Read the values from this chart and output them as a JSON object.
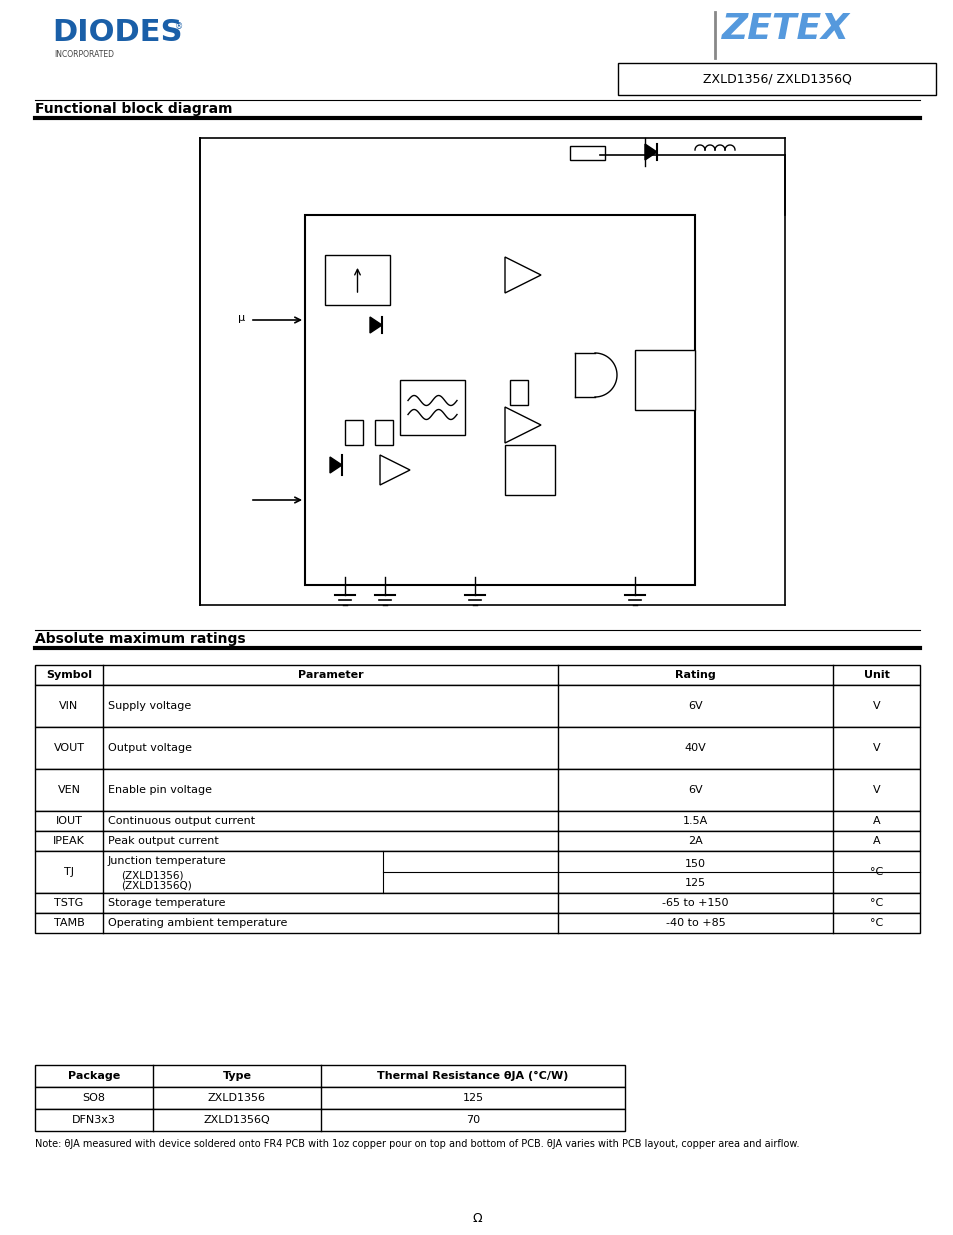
{
  "title": "ZXLD1356/ ZXLD1356Q",
  "title_box_text": "ZXLD1356/ ZXLD1356Q",
  "diodes_logo_text": "DIODES",
  "diodes_sub_text": "INCORPORATED",
  "zetex_logo_text": "ZETEX",
  "section1_title": "Functional block diagram",
  "section2_title": "Absolute maximum ratings",
  "bg_color": "#ffffff",
  "line_color": "#000000",
  "table1_headers": [
    "Symbol",
    "Parameter",
    "Rating",
    "Unit"
  ],
  "table1_rows": [
    [
      "VIN",
      "Supply voltage",
      "6V",
      "V"
    ],
    [
      "VOUT",
      "Output voltage",
      "40V",
      "V"
    ],
    [
      "VEN",
      "Enable pin voltage",
      "6V",
      "V"
    ],
    [
      "IOUT",
      "Continuous output current",
      "1.5A",
      "A"
    ],
    [
      "IPEAK",
      "Peak output current",
      "2A",
      "A"
    ],
    [
      "TJ",
      "Junction temperature|(ZXLD1356)|(ZXLD1356Q)",
      "150|125",
      "°C"
    ],
    [
      "TSTG",
      "Storage temperature",
      "-65 to +150",
      "°C"
    ],
    [
      "TAMB",
      "Operating ambient temperature",
      "-40 to +85",
      "°C"
    ]
  ],
  "table2_headers": [
    "Package",
    "Type",
    "Thermal Resistance θJA (°C/W)"
  ],
  "table2_rows": [
    [
      "SO8",
      "ZXLD1356",
      "125"
    ],
    [
      "DFN3x3",
      "ZXLD1356Q",
      "70"
    ]
  ],
  "note_text": "Note: θJA measured with device soldered onto FR4 PCB with 1oz copper pour on top and bottom of PCB. θJA varies with PCB layout, copper area and airflow.",
  "footer_omega": "Ω"
}
